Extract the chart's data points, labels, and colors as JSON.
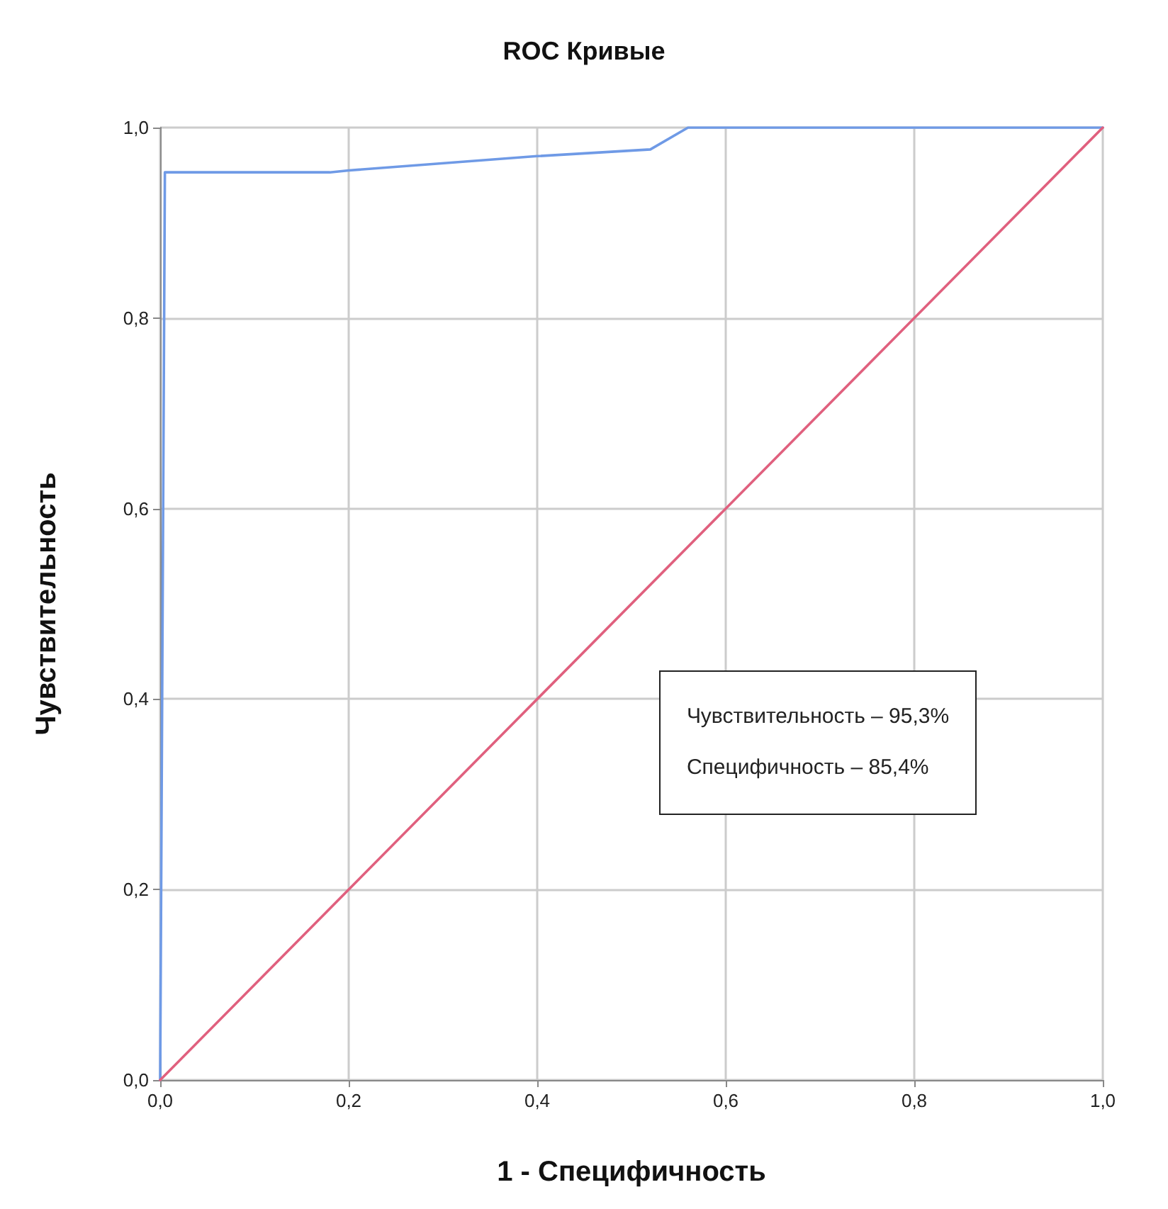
{
  "chart_data": {
    "type": "line",
    "title": "ROC Кривые",
    "xlabel": "1 - Специфичность",
    "ylabel": "Чувствительность",
    "series": [
      {
        "color": "#6f9ae6",
        "x": [
          0,
          0.005,
          0.18,
          0.2,
          0.4,
          0.52,
          0.56,
          1
        ],
        "values": [
          0,
          0.953,
          0.953,
          0.955,
          0.97,
          0.977,
          1,
          1
        ]
      },
      {
        "color": "#e0607e",
        "x": [
          0,
          1
        ],
        "values": [
          0,
          1
        ]
      }
    ],
    "xlim": [
      0,
      1
    ],
    "ylim": [
      0,
      1
    ],
    "xticks": [
      {
        "value": 0,
        "label": "0,0"
      },
      {
        "value": 0.2,
        "label": "0,2"
      },
      {
        "value": 0.4,
        "label": "0,4"
      },
      {
        "value": 0.6,
        "label": "0,6"
      },
      {
        "value": 0.8,
        "label": "0,8"
      },
      {
        "value": 1,
        "label": "1,0"
      }
    ],
    "yticks": [
      {
        "value": 0,
        "label": "0,0"
      },
      {
        "value": 0.2,
        "label": "0,2"
      },
      {
        "value": 0.4,
        "label": "0,4"
      },
      {
        "value": 0.6,
        "label": "0,6"
      },
      {
        "value": 0.8,
        "label": "0,8"
      },
      {
        "value": 1,
        "label": "1,0"
      }
    ],
    "grid": true,
    "marker": "none",
    "line_style": "solid",
    "annotations": [
      "Чувствительность – 95,3%",
      "Специфичность – 85,4%"
    ]
  }
}
